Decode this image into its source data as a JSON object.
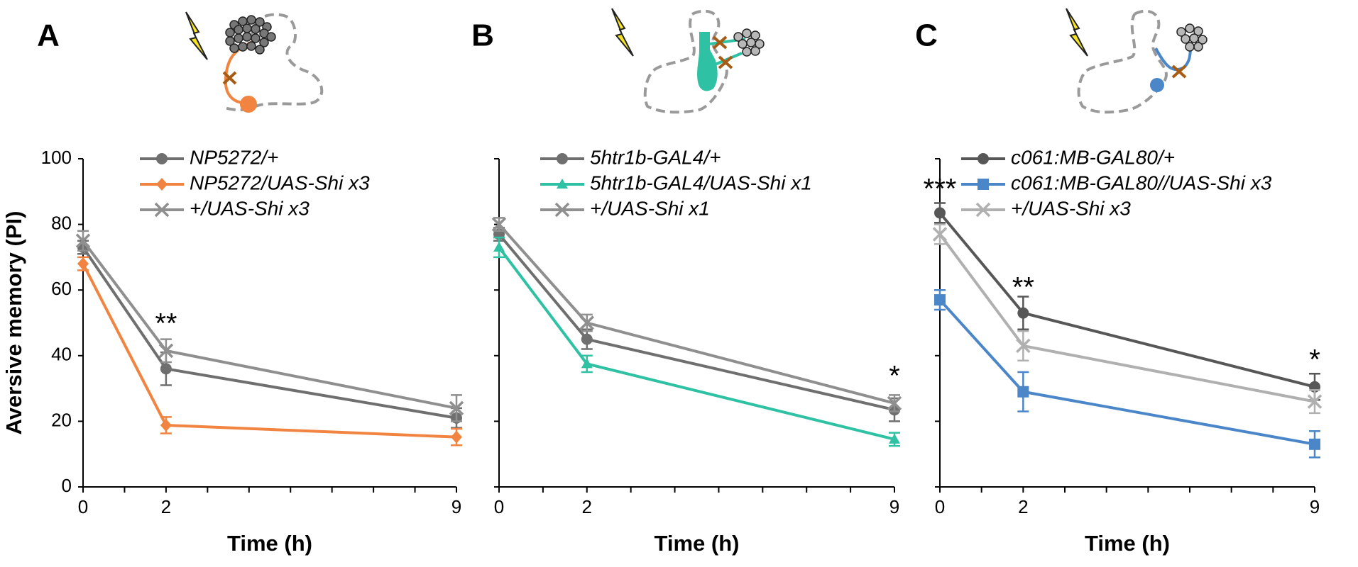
{
  "chart_data": [
    {
      "panel": "A",
      "type": "line",
      "x": [
        0,
        2,
        9
      ],
      "ylabel": "Aversive memory (PI)",
      "xlabel": "Time (h)",
      "ylim": [
        0,
        100
      ],
      "yticks": [
        0,
        20,
        40,
        60,
        80,
        100
      ],
      "xtick_labels": [
        "0",
        "2",
        "9"
      ],
      "legend_placement": "top",
      "series": [
        {
          "name": "NP5272/+",
          "values": [
            73,
            36,
            21
          ],
          "errors": [
            2,
            5,
            3
          ],
          "color": "#6f6f6f",
          "marker": "circle"
        },
        {
          "name": "NP5272/UAS-Shi x3",
          "values": [
            68,
            18.8,
            15.2
          ],
          "errors": [
            2,
            2.5,
            2.5
          ],
          "color": "#f08440",
          "marker": "diamond"
        },
        {
          "name": "+/UAS-Shi x3",
          "values": [
            75,
            41.5,
            24
          ],
          "errors": [
            3,
            3.5,
            4
          ],
          "color": "#8f8f8f",
          "marker": "cross"
        }
      ],
      "annotations": [
        {
          "x": 2,
          "y": 47,
          "text": "**"
        }
      ]
    },
    {
      "panel": "B",
      "type": "line",
      "x": [
        0,
        2,
        9
      ],
      "ylabel": "",
      "xlabel": "Time (h)",
      "ylim": [
        0,
        100
      ],
      "yticks": [
        0,
        20,
        40,
        60,
        80,
        100
      ],
      "xtick_labels": [
        "0",
        "2",
        "9"
      ],
      "legend_placement": "top",
      "series": [
        {
          "name": "5htr1b-GAL4/+",
          "values": [
            77,
            45,
            23.5
          ],
          "errors": [
            2,
            3,
            3.5
          ],
          "color": "#6f6f6f",
          "marker": "circle"
        },
        {
          "name": "5htr1b-GAL4/UAS-Shi x1",
          "values": [
            73,
            37.5,
            14.5
          ],
          "errors": [
            3,
            2.5,
            2
          ],
          "color": "#2fc1a3",
          "marker": "triangle"
        },
        {
          "name": "+/UAS-Shi x1",
          "values": [
            80,
            50,
            25.5
          ],
          "errors": [
            2,
            2.5,
            2.5
          ],
          "color": "#8f8f8f",
          "marker": "cross"
        }
      ],
      "annotations": [
        {
          "x": 9,
          "y": 31,
          "text": "*"
        }
      ]
    },
    {
      "panel": "C",
      "type": "line",
      "x": [
        0,
        2,
        9
      ],
      "ylabel": "",
      "xlabel": "Time (h)",
      "ylim": [
        0,
        100
      ],
      "yticks": [
        0,
        20,
        40,
        60,
        80,
        100
      ],
      "xtick_labels": [
        "0",
        "2",
        "9"
      ],
      "legend_placement": "top",
      "series": [
        {
          "name": "c061:MB-GAL80/+",
          "values": [
            83.5,
            53,
            30.5
          ],
          "errors": [
            3,
            5,
            4
          ],
          "color": "#575757",
          "marker": "circle"
        },
        {
          "name": "c061:MB-GAL80//UAS-Shi x3",
          "values": [
            57,
            29,
            13
          ],
          "errors": [
            3,
            6,
            4
          ],
          "color": "#4a86c8",
          "marker": "square"
        },
        {
          "name": "+/UAS-Shi x3",
          "values": [
            77,
            43,
            26
          ],
          "errors": [
            3,
            4.5,
            3.5
          ],
          "color": "#b0b0b0",
          "marker": "cross"
        }
      ],
      "annotations": [
        {
          "x": 0,
          "y": 88,
          "text": "***"
        },
        {
          "x": 2,
          "y": 58,
          "text": "**"
        },
        {
          "x": 9,
          "y": 36,
          "text": "*"
        }
      ]
    }
  ]
}
